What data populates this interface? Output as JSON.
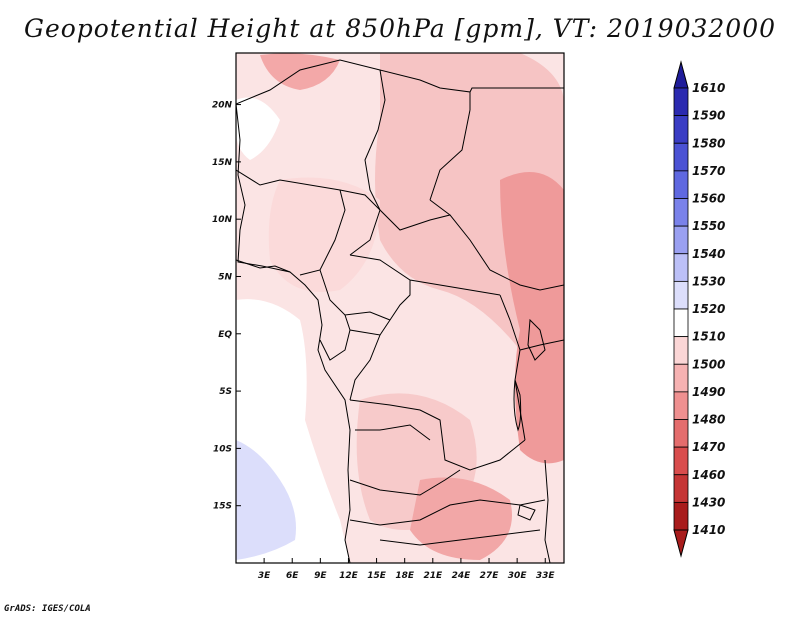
{
  "title": "Geopotential Height at 850hPa [gpm], VT: 2019032000",
  "footer": "GrADS: IGES/COLA",
  "map": {
    "lon_range": [
      0,
      35
    ],
    "lat_range": [
      -20,
      24.5
    ],
    "lon_ticks": [
      {
        "value": 3,
        "label": "3E"
      },
      {
        "value": 6,
        "label": "6E"
      },
      {
        "value": 9,
        "label": "9E"
      },
      {
        "value": 12,
        "label": "12E"
      },
      {
        "value": 15,
        "label": "15E"
      },
      {
        "value": 18,
        "label": "18E"
      },
      {
        "value": 21,
        "label": "21E"
      },
      {
        "value": 24,
        "label": "24E"
      },
      {
        "value": 27,
        "label": "27E"
      },
      {
        "value": 30,
        "label": "30E"
      },
      {
        "value": 33,
        "label": "33E"
      }
    ],
    "lat_ticks": [
      {
        "value": 20,
        "label": "20N"
      },
      {
        "value": 15,
        "label": "15N"
      },
      {
        "value": 10,
        "label": "10N"
      },
      {
        "value": 5,
        "label": "5N"
      },
      {
        "value": 0,
        "label": "EQ"
      },
      {
        "value": -5,
        "label": "5S"
      },
      {
        "value": -10,
        "label": "10S"
      },
      {
        "value": -15,
        "label": "15S"
      }
    ]
  },
  "colorbar": {
    "levels": [
      "1610",
      "1590",
      "1580",
      "1570",
      "1560",
      "1550",
      "1540",
      "1530",
      "1520",
      "1510",
      "1500",
      "1490",
      "1480",
      "1470",
      "1460",
      "1430",
      "1410"
    ],
    "colors": [
      "#1f1c9a",
      "#2b2ab0",
      "#3a3dc4",
      "#4b52d4",
      "#5f68e0",
      "#7a82ea",
      "#9aa0f1",
      "#bcc0f7",
      "#dcdefb",
      "#ffffff",
      "#fbd6d6",
      "#f6b2b2",
      "#ef9090",
      "#e46d6d",
      "#d94d4d",
      "#c53535",
      "#a81c1c"
    ]
  }
}
